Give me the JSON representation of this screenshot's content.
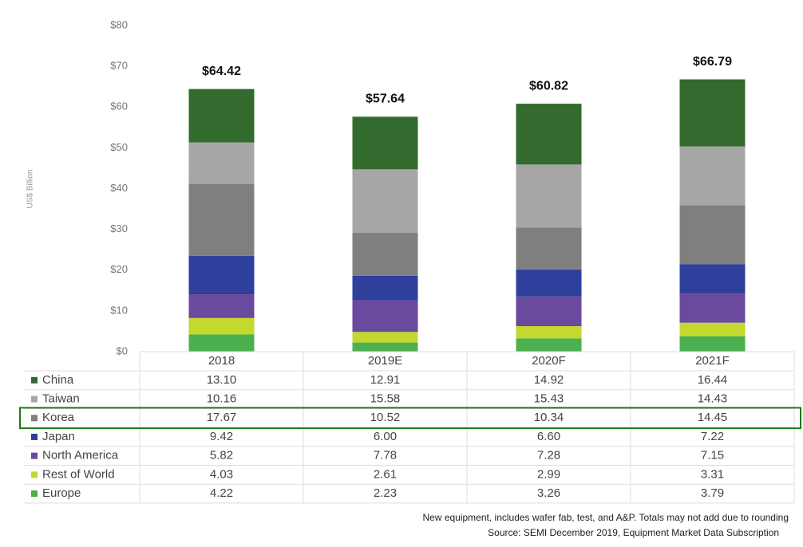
{
  "chart_data": {
    "type": "bar",
    "stacked": true,
    "y_label": "US$ Billion",
    "categories": [
      "2018",
      "2019E",
      "2020F",
      "2021F"
    ],
    "ylim": [
      0,
      80
    ],
    "yticks": [
      {
        "value": 0,
        "label": "$0"
      },
      {
        "value": 10,
        "label": "$10"
      },
      {
        "value": 20,
        "label": "$20"
      },
      {
        "value": 30,
        "label": "$30"
      },
      {
        "value": 40,
        "label": "$40"
      },
      {
        "value": 50,
        "label": "$50"
      },
      {
        "value": 60,
        "label": "$60"
      },
      {
        "value": 70,
        "label": "$70"
      },
      {
        "value": 80,
        "label": "$80"
      }
    ],
    "series": [
      {
        "name": "China",
        "color": "#336b2e",
        "values": [
          13.1,
          12.91,
          14.92,
          16.44
        ],
        "value_labels": [
          "13.10",
          "12.91",
          "14.92",
          "16.44"
        ]
      },
      {
        "name": "Taiwan",
        "color": "#a6a6a6",
        "values": [
          10.16,
          15.58,
          15.43,
          14.43
        ],
        "value_labels": [
          "10.16",
          "15.58",
          "15.43",
          "14.43"
        ]
      },
      {
        "name": "Korea",
        "color": "#7f7f7f",
        "values": [
          17.67,
          10.52,
          10.34,
          14.45
        ],
        "value_labels": [
          "17.67",
          "10.52",
          "10.34",
          "14.45"
        ]
      },
      {
        "name": "Japan",
        "color": "#2e3f9c",
        "values": [
          9.42,
          6.0,
          6.6,
          7.22
        ],
        "value_labels": [
          "9.42",
          "6.00",
          "6.60",
          "7.22"
        ]
      },
      {
        "name": "North America",
        "color": "#6a4a9e",
        "values": [
          5.82,
          7.78,
          7.28,
          7.15
        ],
        "value_labels": [
          "5.82",
          "7.78",
          "7.28",
          "7.15"
        ]
      },
      {
        "name": "Rest of World",
        "color": "#c4d82e",
        "values": [
          4.03,
          2.61,
          2.99,
          3.31
        ],
        "value_labels": [
          "4.03",
          "2.61",
          "2.99",
          "3.31"
        ]
      },
      {
        "name": "Europe",
        "color": "#4caf50",
        "values": [
          4.22,
          2.23,
          3.26,
          3.79
        ],
        "value_labels": [
          "4.22",
          "2.23",
          "3.26",
          "3.79"
        ]
      }
    ],
    "totals": {
      "values": [
        64.42,
        57.64,
        60.82,
        66.79
      ],
      "value_labels": [
        "$64.42",
        "$57.64",
        "$60.82",
        "$66.79"
      ]
    },
    "notes": [
      "New equipment, includes wafer fab, test, and A&P. Totals may not add due to rounding",
      "Source: SEMI December 2019, Equipment Market Data Subscription"
    ]
  }
}
